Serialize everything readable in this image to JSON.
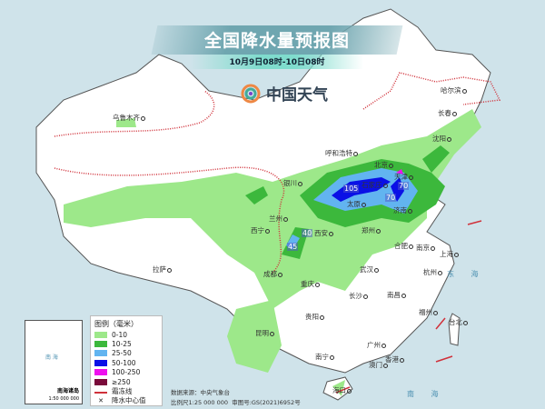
{
  "header": {
    "title": "全国降水量预报图",
    "period": "10月9日08时-10日08时",
    "brand": "中国天气"
  },
  "legend": {
    "title": "图例（毫米）",
    "items": [
      {
        "label": "0-10",
        "color": "#9de88a"
      },
      {
        "label": "10-25",
        "color": "#3cb83c"
      },
      {
        "label": "25-50",
        "color": "#62b4f0"
      },
      {
        "label": "50-100",
        "color": "#0a10e6"
      },
      {
        "label": "100-250",
        "color": "#ee10ee"
      },
      {
        "label": "≥250",
        "color": "#7a0a3a"
      },
      {
        "label": "霜冻线",
        "color": "#d0313a"
      },
      {
        "label": "降水中心值",
        "color": "#000000"
      }
    ]
  },
  "footer": {
    "source": "数据来源：中央气象台",
    "scale": "比例尺1:25 000 000",
    "review": "审图号:GS(2021)6952号"
  },
  "inset": {
    "title": "南海诸岛",
    "scale": "1:50 000 000",
    "sea": "南 海"
  },
  "cities": [
    "乌鲁木齐",
    "哈尔滨",
    "长春",
    "沈阳",
    "呼和浩特",
    "北京",
    "天津",
    "石家庄",
    "太原",
    "济南",
    "银川",
    "兰州",
    "西宁",
    "西安",
    "郑州",
    "合肥",
    "南京",
    "上海",
    "杭州",
    "武汉",
    "成都",
    "重庆",
    "长沙",
    "南昌",
    "贵阳",
    "福州",
    "台北",
    "昆明",
    "拉萨",
    "南宁",
    "广州",
    "香港",
    "澳门",
    "海口"
  ],
  "seas": [
    "东 海",
    "南 海"
  ],
  "center_values": [
    "105",
    "70",
    "70",
    "40",
    "45"
  ]
}
